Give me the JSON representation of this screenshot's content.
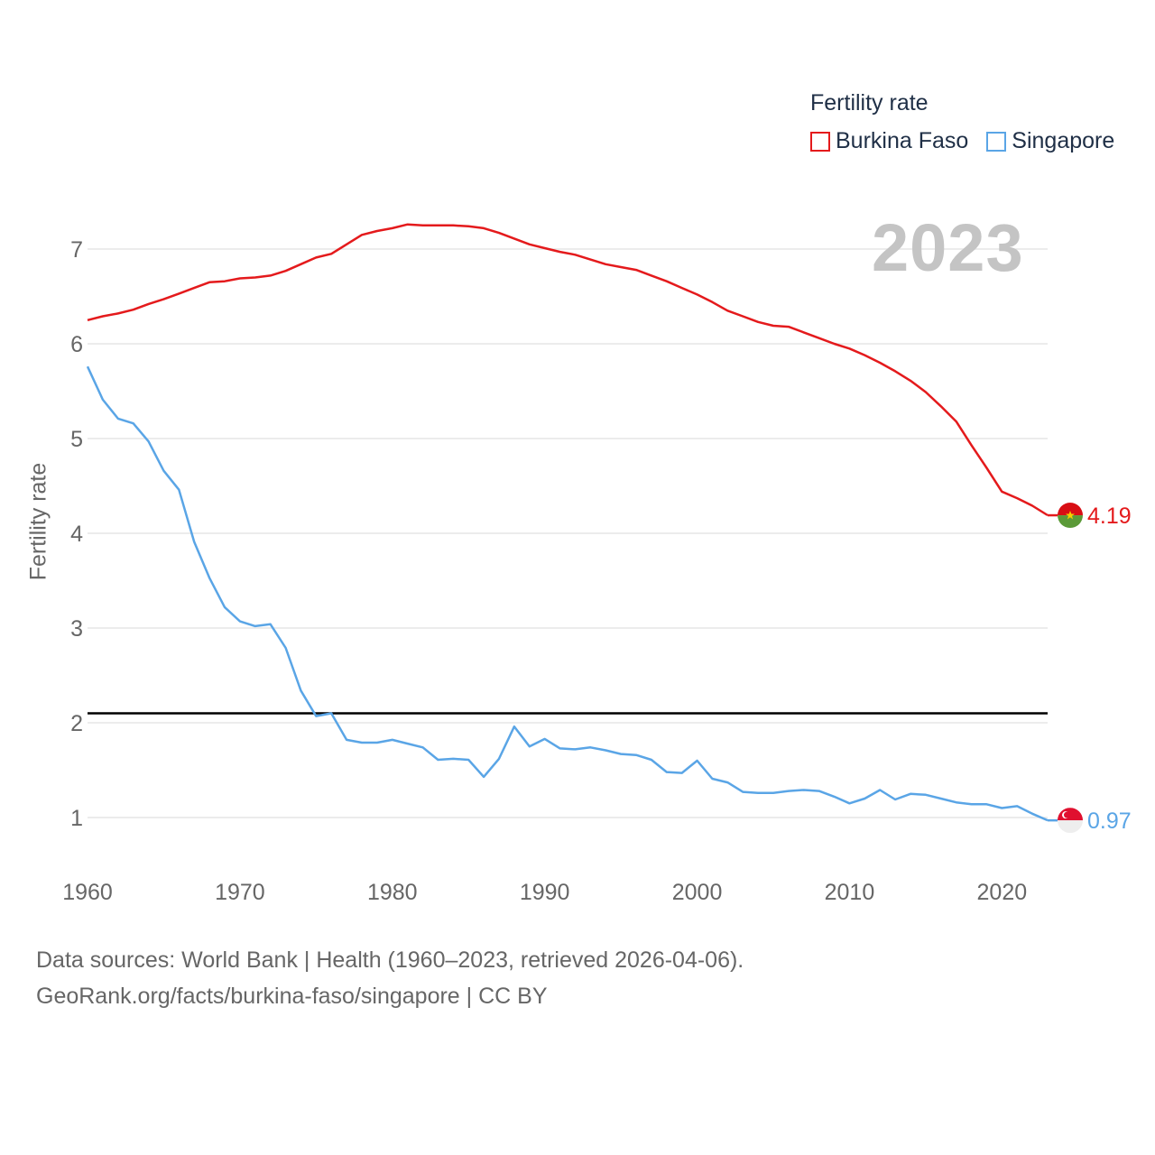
{
  "chart_data": {
    "type": "line",
    "title": "",
    "ylabel": "Fertility rate",
    "xlabel": "",
    "xlim": [
      1960,
      2023
    ],
    "ylim": [
      0.5,
      7.5
    ],
    "x_ticks": [
      1960,
      1970,
      1980,
      1990,
      2000,
      2010,
      2020
    ],
    "y_ticks": [
      1,
      2,
      3,
      4,
      5,
      6,
      7
    ],
    "reference_line": 2.1,
    "year_badge": "2023",
    "legend": {
      "title": "Fertility rate",
      "placement": "top-right"
    },
    "x": [
      1960,
      1961,
      1962,
      1963,
      1964,
      1965,
      1966,
      1967,
      1968,
      1969,
      1970,
      1971,
      1972,
      1973,
      1974,
      1975,
      1976,
      1977,
      1978,
      1979,
      1980,
      1981,
      1982,
      1983,
      1984,
      1985,
      1986,
      1987,
      1988,
      1989,
      1990,
      1991,
      1992,
      1993,
      1994,
      1995,
      1996,
      1997,
      1998,
      1999,
      2000,
      2001,
      2002,
      2003,
      2004,
      2005,
      2006,
      2007,
      2008,
      2009,
      2010,
      2011,
      2012,
      2013,
      2014,
      2015,
      2016,
      2017,
      2018,
      2019,
      2020,
      2021,
      2022,
      2023
    ],
    "series": [
      {
        "name": "Burkina Faso",
        "color": "#e41a1c",
        "end_label": "4.19",
        "values": [
          6.25,
          6.29,
          6.32,
          6.36,
          6.42,
          6.47,
          6.53,
          6.59,
          6.65,
          6.66,
          6.69,
          6.7,
          6.72,
          6.77,
          6.84,
          6.91,
          6.95,
          7.05,
          7.15,
          7.19,
          7.22,
          7.26,
          7.25,
          7.25,
          7.25,
          7.24,
          7.22,
          7.17,
          7.11,
          7.05,
          7.01,
          6.97,
          6.94,
          6.89,
          6.84,
          6.81,
          6.78,
          6.72,
          6.66,
          6.59,
          6.52,
          6.44,
          6.35,
          6.29,
          6.23,
          6.19,
          6.18,
          6.12,
          6.06,
          6.0,
          5.95,
          5.88,
          5.8,
          5.71,
          5.61,
          5.49,
          5.34,
          5.18,
          4.93,
          4.69,
          4.44,
          4.37,
          4.29,
          4.19
        ]
      },
      {
        "name": "Singapore",
        "color": "#5aa5e6",
        "end_label": "0.97",
        "values": [
          5.76,
          5.41,
          5.21,
          5.16,
          4.97,
          4.66,
          4.46,
          3.91,
          3.53,
          3.22,
          3.07,
          3.02,
          3.04,
          2.79,
          2.34,
          2.07,
          2.1,
          1.82,
          1.79,
          1.79,
          1.82,
          1.78,
          1.74,
          1.61,
          1.62,
          1.61,
          1.43,
          1.62,
          1.96,
          1.75,
          1.83,
          1.73,
          1.72,
          1.74,
          1.71,
          1.67,
          1.66,
          1.61,
          1.48,
          1.47,
          1.6,
          1.41,
          1.37,
          1.27,
          1.26,
          1.26,
          1.28,
          1.29,
          1.28,
          1.22,
          1.15,
          1.2,
          1.29,
          1.19,
          1.25,
          1.24,
          1.2,
          1.16,
          1.14,
          1.14,
          1.1,
          1.12,
          1.04,
          0.97
        ]
      }
    ]
  },
  "footer": {
    "line1": "Data sources: World Bank | Health (1960–2023, retrieved 2026-04-06).",
    "line2": "GeoRank.org/facts/burkina-faso/singapore | CC BY"
  }
}
